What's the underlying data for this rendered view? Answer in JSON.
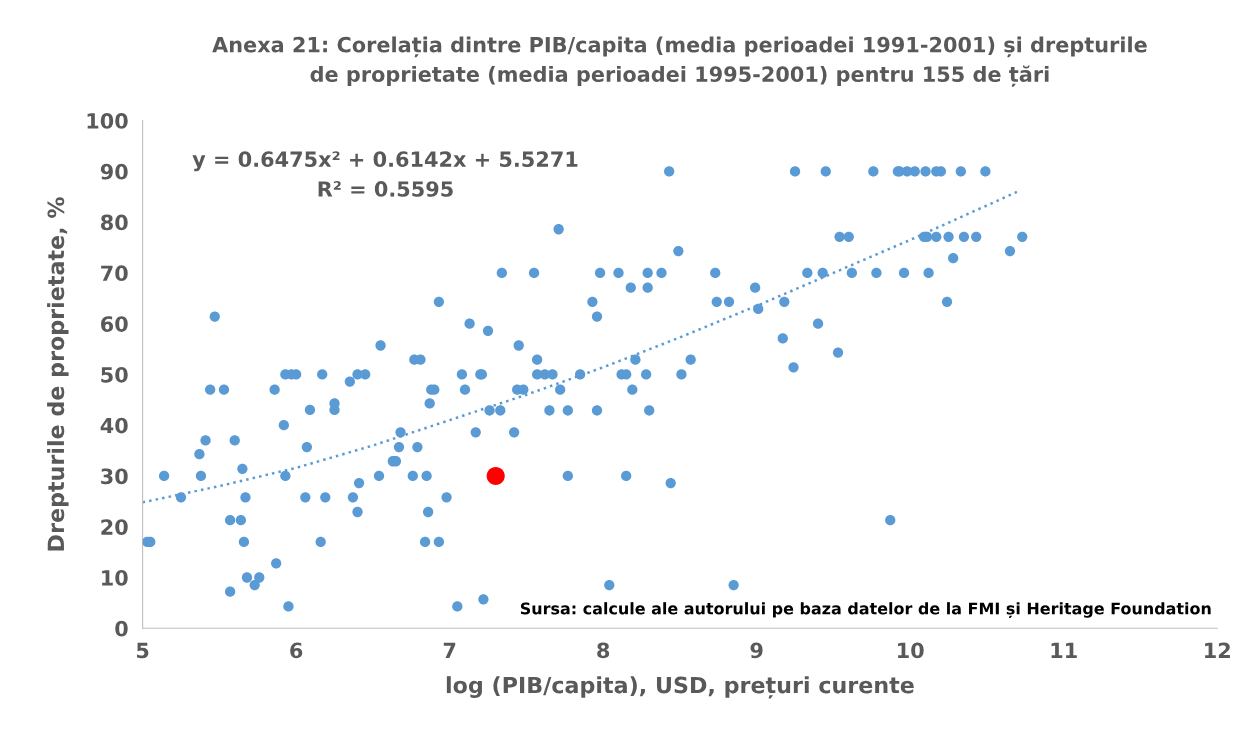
{
  "chart_data": {
    "type": "scatter",
    "title": "Anexa 21: Corelația dintre PIB/capita (media perioadei 1991-2001) și drepturile\nde proprietate (media perioadei 1995-2001) pentru 155 de țări",
    "xlabel": "log (PIB/capita), USD, prețuri curente",
    "ylabel": "Drepturile de proprietate, %",
    "xlim": [
      5,
      12
    ],
    "xticks": [
      5,
      6,
      7,
      8,
      9,
      10,
      11,
      12
    ],
    "ylim": [
      0,
      100
    ],
    "yticks": [
      0,
      10,
      20,
      30,
      40,
      50,
      60,
      70,
      80,
      90,
      100
    ],
    "grid": false,
    "marker": "circle",
    "annotations": [
      "y = 0.6475x² + 0.6142x + 5.5271\nR² = 0.5595",
      "Sursa: calcule ale autorului pe baza datelor de la FMI și Heritage Foundation"
    ],
    "series": [
      {
        "color": "#5b9bd5",
        "x": [
          5.03,
          5.05,
          5.14,
          5.25,
          5.37,
          5.38,
          5.41,
          5.44,
          5.47,
          5.53,
          5.57,
          5.57,
          5.6,
          5.64,
          5.65,
          5.66,
          5.67,
          5.68,
          5.73,
          5.76,
          5.86,
          5.87,
          5.92,
          5.93,
          5.93,
          5.95,
          5.97,
          6.0,
          6.06,
          6.07,
          6.09,
          6.16,
          6.17,
          6.19,
          6.25,
          6.25,
          6.35,
          6.37,
          6.4,
          6.4,
          6.41,
          6.45,
          6.55,
          6.54,
          6.63,
          6.65,
          6.67,
          6.68,
          6.76,
          6.77,
          6.79,
          6.81,
          6.84,
          6.85,
          6.86,
          6.87,
          6.88,
          6.9,
          6.93,
          6.93,
          6.98,
          7.05,
          7.08,
          7.1,
          7.13,
          7.17,
          7.2,
          7.21,
          7.22,
          7.25,
          7.26,
          7.34,
          7.33,
          7.42,
          7.44,
          7.45,
          7.48,
          7.55,
          7.57,
          7.57,
          7.62,
          7.65,
          7.67,
          7.71,
          7.72,
          7.77,
          7.77,
          7.85,
          7.93,
          7.96,
          7.96,
          7.98,
          8.04,
          8.1,
          8.12,
          8.15,
          8.15,
          8.18,
          8.19,
          8.21,
          8.28,
          8.29,
          8.29,
          8.3,
          8.38,
          8.43,
          8.44,
          8.49,
          8.51,
          8.57,
          8.73,
          8.74,
          8.82,
          8.85,
          8.99,
          9.01,
          9.17,
          9.18,
          9.24,
          9.25,
          9.33,
          9.4,
          9.43,
          9.45,
          9.53,
          9.54,
          9.6,
          9.62,
          9.76,
          9.78,
          9.87,
          9.92,
          9.93,
          9.96,
          9.98,
          10.03,
          10.09,
          10.1,
          10.11,
          10.12,
          10.17,
          10.17,
          10.2,
          10.24,
          10.25,
          10.28,
          10.33,
          10.35,
          10.43,
          10.49,
          10.65,
          10.73
        ],
        "values": [
          17,
          17,
          30,
          25.8,
          34.3,
          30,
          37,
          47,
          61.4,
          47,
          21.3,
          7.2,
          37,
          21.3,
          31.4,
          17,
          25.8,
          10,
          8.5,
          10,
          47,
          12.8,
          40,
          30,
          50,
          4.3,
          50,
          50,
          25.8,
          35.7,
          43,
          17,
          50,
          25.8,
          44.3,
          43,
          48.6,
          25.8,
          22.9,
          50,
          28.6,
          50,
          55.7,
          30,
          32.9,
          32.9,
          35.7,
          38.6,
          30,
          52.9,
          35.7,
          52.9,
          17,
          30,
          22.9,
          44.3,
          47,
          47,
          17,
          64.3,
          25.8,
          4.3,
          50,
          47,
          60,
          38.6,
          50,
          50,
          5.7,
          58.6,
          42.9,
          70,
          42.9,
          38.6,
          47,
          55.7,
          47,
          70,
          52.9,
          50,
          50,
          42.9,
          50,
          78.6,
          47,
          42.9,
          30,
          50,
          64.3,
          61.4,
          42.9,
          70,
          8.5,
          70,
          50,
          50,
          30,
          67.1,
          47,
          52.9,
          50,
          70,
          67.1,
          42.9,
          70,
          90,
          28.6,
          74.3,
          50,
          52.9,
          70,
          64.3,
          64.3,
          8.5,
          67.1,
          62.9,
          57.1,
          64.3,
          51.4,
          90,
          70,
          60,
          70,
          90,
          54.3,
          77.1,
          77.1,
          70,
          90,
          70,
          21.3,
          90,
          90,
          70,
          90,
          90,
          77.1,
          90,
          77.1,
          70,
          77.1,
          90,
          90,
          64.3,
          77.1,
          72.9,
          90,
          77.1,
          77.1,
          90,
          74.3,
          77.1
        ]
      },
      {
        "color": "#ff0000",
        "x": [
          7.3
        ],
        "values": [
          30
        ]
      },
      {
        "type": "line",
        "color": "#5b9bd5",
        "line_style": "dotted",
        "marker": "none",
        "x": [
          5.0,
          5.5,
          6.0,
          6.5,
          7.0,
          7.5,
          8.0,
          8.5,
          9.0,
          9.5,
          10.0,
          10.5,
          10.72
        ],
        "values": [
          24.8,
          28,
          31.6,
          36,
          41,
          46,
          51.4,
          57.3,
          63.5,
          70,
          76.5,
          83.3,
          86.3
        ]
      }
    ]
  }
}
